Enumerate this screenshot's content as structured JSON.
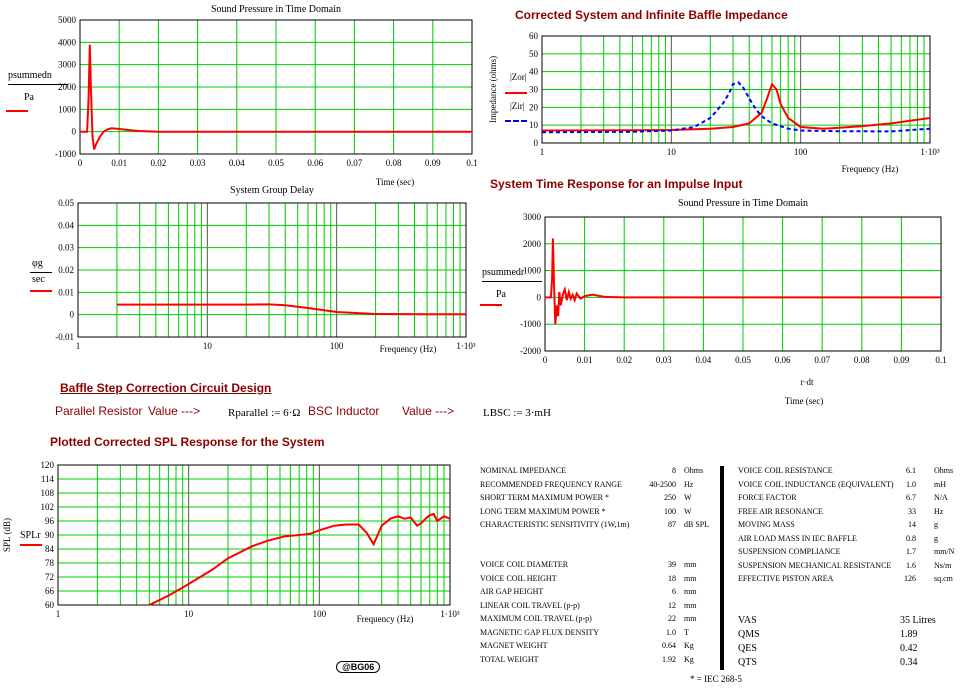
{
  "colors": {
    "grid": "#00cc00",
    "frame": "#000000",
    "decade": "#555555",
    "series1": "#ff0000",
    "series2": "#0000ff",
    "heading": "#8b0000"
  },
  "headings": {
    "impedance": "Corrected System and Infinite Baffle Impedance",
    "impulse": "System Time Response for an Impulse Input",
    "baffle": "Baffle Step Correction Circuit Design",
    "spl": "Plotted Corrected SPL Response for the System"
  },
  "circuit": {
    "parallel_label": "Parallel Resistor",
    "value_arrow_1": "Value --->",
    "r_expr": "Rparallel := 6·Ω",
    "inductor_label": "BSC Inductor",
    "value_arrow_2": "Value --->",
    "l_expr": "LBSC := 3·mH"
  },
  "legend_labels": {
    "p_summed_n": "psummedn",
    "pa": "Pa",
    "z_o": "|Zor|",
    "z_i": "|Zir|",
    "phi": "φg",
    "sec": "sec",
    "p_summed_r": "psummedr",
    "pa2": "Pa",
    "spl": "SPLr"
  },
  "chart_data": [
    {
      "type": "line",
      "title": "Sound Pressure in Time Domain",
      "xlabel": "Time (sec)",
      "ylabel": "",
      "xlim": [
        0,
        0.1
      ],
      "ylim": [
        -1000,
        5000
      ],
      "xticks": [
        "0",
        "0.01",
        "0.02",
        "0.03",
        "0.04",
        "0.05",
        "0.06",
        "0.07",
        "0.08",
        "0.09",
        "0.1"
      ],
      "yticks": [
        "-1000",
        "0",
        "1000",
        "2000",
        "3000",
        "4000",
        "5000"
      ],
      "grid": true,
      "series": [
        {
          "name": "psummedn",
          "x": [
            0,
            0.0018,
            0.0022,
            0.0025,
            0.0028,
            0.0032,
            0.0036,
            0.004,
            0.005,
            0.006,
            0.007,
            0.008,
            0.01,
            0.012,
            0.015,
            0.02,
            0.03,
            0.05,
            0.1
          ],
          "y": [
            0,
            0,
            1500,
            3900,
            1800,
            -200,
            -800,
            -600,
            -250,
            0,
            100,
            150,
            120,
            80,
            30,
            0,
            0,
            0,
            0
          ]
        }
      ]
    },
    {
      "type": "line",
      "title": "",
      "xlabel": "Frequency (Hz)",
      "ylabel": "Impedance (ohms)",
      "xscale": "log",
      "xlim": [
        1,
        1000
      ],
      "ylim": [
        0,
        60
      ],
      "xticks": [
        "1",
        "10",
        "100",
        "1·10^3"
      ],
      "yticks": [
        "0",
        "10",
        "20",
        "30",
        "40",
        "50",
        "60"
      ],
      "grid": true,
      "series": [
        {
          "name": "|Zor|",
          "x": [
            1,
            5,
            10,
            20,
            30,
            40,
            50,
            55,
            60,
            65,
            70,
            80,
            100,
            150,
            200,
            300,
            500,
            1000
          ],
          "y": [
            7,
            7.1,
            7.3,
            8,
            9,
            11,
            17,
            25,
            33,
            30,
            22,
            14,
            9,
            8,
            8.6,
            9.5,
            11,
            14
          ]
        },
        {
          "name": "|Zir|",
          "x": [
            1,
            5,
            10,
            15,
            20,
            25,
            28,
            30,
            33,
            36,
            40,
            45,
            50,
            60,
            80,
            100,
            200,
            500,
            1000
          ],
          "y": [
            6,
            6.3,
            7,
            9,
            14,
            22,
            28,
            33,
            34,
            31,
            25,
            19,
            15,
            11,
            8,
            7,
            6.6,
            6.5,
            8
          ]
        }
      ]
    },
    {
      "type": "line",
      "title": "System Group Delay",
      "xlabel": "Frequency (Hz)",
      "ylabel": "",
      "xscale": "log",
      "xlim": [
        1,
        1000
      ],
      "ylim": [
        -0.01,
        0.05
      ],
      "xticks": [
        "1",
        "10",
        "100",
        "1·10^3"
      ],
      "yticks": [
        "-0.01",
        "0",
        "0.01",
        "0.02",
        "0.03",
        "0.04",
        "0.05"
      ],
      "grid": true,
      "series": [
        {
          "name": "φg",
          "x": [
            2,
            5,
            10,
            20,
            30,
            40,
            60,
            100,
            200,
            500,
            1000
          ],
          "y": [
            0.0045,
            0.0045,
            0.0045,
            0.0045,
            0.0046,
            0.0042,
            0.003,
            0.0012,
            0.0003,
            0.0002,
            0.0002
          ]
        }
      ]
    },
    {
      "type": "line",
      "title": "Sound Pressure in Time Domain",
      "xlabel": "Time (sec)",
      "ylabel": "",
      "xlim": [
        0,
        0.1
      ],
      "ylim": [
        -2000,
        3000
      ],
      "xticks": [
        "0",
        "0.01",
        "0.02",
        "0.03",
        "0.04",
        "0.05",
        "0.06",
        "0.07",
        "0.08",
        "0.09",
        "0.1"
      ],
      "yticks": [
        "-2000",
        "-1000",
        "0",
        "1000",
        "2000",
        "3000"
      ],
      "grid": true,
      "annotation": "r·dt",
      "series": [
        {
          "name": "psummedr",
          "x": [
            0,
            0.0015,
            0.0018,
            0.002,
            0.0023,
            0.0026,
            0.003,
            0.0033,
            0.0036,
            0.004,
            0.0045,
            0.005,
            0.0055,
            0.006,
            0.0065,
            0.007,
            0.0075,
            0.008,
            0.009,
            0.01,
            0.012,
            0.015,
            0.02,
            0.05,
            0.1
          ],
          "y": [
            0,
            0,
            700,
            2200,
            400,
            -1000,
            -300,
            -700,
            200,
            -300,
            100,
            300,
            -100,
            200,
            -50,
            100,
            -100,
            150,
            -50,
            50,
            100,
            20,
            0,
            0,
            0
          ]
        }
      ]
    },
    {
      "type": "line",
      "title": "",
      "xlabel": "Frequency (Hz)",
      "ylabel": "SPL (dB)",
      "xscale": "log",
      "xlim": [
        1,
        1000
      ],
      "ylim": [
        60,
        120
      ],
      "xticks": [
        "1",
        "10",
        "100",
        "1·10^3"
      ],
      "yticks": [
        "60",
        "66",
        "72",
        "78",
        "84",
        "90",
        "96",
        "102",
        "108",
        "114",
        "120"
      ],
      "grid": true,
      "series": [
        {
          "name": "SPLr",
          "x": [
            5,
            7,
            10,
            15,
            20,
            30,
            40,
            55,
            70,
            85,
            100,
            130,
            160,
            200,
            230,
            260,
            300,
            350,
            400,
            450,
            500,
            560,
            600,
            650,
            700,
            750,
            800,
            900,
            1000
          ],
          "y": [
            60,
            64,
            69,
            75,
            80,
            85,
            87.5,
            89.5,
            90,
            90.5,
            92,
            94,
            94.5,
            94.5,
            91,
            86,
            94,
            97,
            98,
            97,
            97.5,
            94,
            95,
            97,
            98.5,
            99,
            96,
            98,
            97
          ]
        }
      ]
    }
  ],
  "specs_left_a": [
    {
      "label": "NOMINAL IMPEDANCE",
      "value": "8",
      "unit": "Ohms"
    },
    {
      "label": "RECOMMENDED FREQUENCY RANGE",
      "value": "40-2500",
      "unit": "Hz"
    },
    {
      "label": "SHORT TERM MAXIMUM POWER *",
      "value": "250",
      "unit": "W"
    },
    {
      "label": "LONG TERM MAXIMUM POWER *",
      "value": "100",
      "unit": "W"
    },
    {
      "label": "CHARACTERISTIC SENSITIVITY (1W,1m)",
      "value": "87",
      "unit": "dB SPL"
    }
  ],
  "specs_left_b": [
    {
      "label": "VOICE COIL DIAMETER",
      "value": "39",
      "unit": "mm"
    },
    {
      "label": "VOICE COIL HEIGHT",
      "value": "18",
      "unit": "mm"
    },
    {
      "label": "AIR GAP HEIGHT",
      "value": "6",
      "unit": "mm"
    },
    {
      "label": "LINEAR COIL TRAVEL (p-p)",
      "value": "12",
      "unit": "mm"
    },
    {
      "label": "MAXIMUM COIL TRAVEL (p-p)",
      "value": "22",
      "unit": "mm"
    },
    {
      "label": "MAGNETIC GAP FLUX DENSITY",
      "value": "1.0",
      "unit": "T"
    },
    {
      "label": "MAGNET WEIGHT",
      "value": "0.64",
      "unit": "Kg"
    },
    {
      "label": "TOTAL WEIGHT",
      "value": "1.92",
      "unit": "Kg"
    }
  ],
  "specs_right": [
    {
      "label": "VOICE COIL RESISTANCE",
      "value": "6.1",
      "unit": "Ohms"
    },
    {
      "label": "VOICE COIL INDUCTANCE (EQUIVALENT)",
      "value": "1.0",
      "unit": "mH"
    },
    {
      "label": "FORCE FACTOR",
      "value": "6.7",
      "unit": "N/A"
    },
    {
      "label": "FREE AIR RESONANCE",
      "value": "33",
      "unit": "Hz"
    },
    {
      "label": "MOVING MASS",
      "value": "14",
      "unit": "g"
    },
    {
      "label": "AIR LOAD MASS IN IEC BAFFLE",
      "value": "0.8",
      "unit": "g"
    },
    {
      "label": "SUSPENSION COMPLIANCE",
      "value": "1.7",
      "unit": "mm/N"
    },
    {
      "label": "SUSPENSION MECHANICAL RESISTANCE",
      "value": "1.6",
      "unit": "Ns/m"
    },
    {
      "label": "EFFECTIVE PISTON AREA",
      "value": "126",
      "unit": "sq.cm"
    }
  ],
  "specs_ts": [
    {
      "label": "VAS",
      "value": "35 Litres"
    },
    {
      "label": "QMS",
      "value": "1.89"
    },
    {
      "label": "QES",
      "value": "0.42"
    },
    {
      "label": "QTS",
      "value": "0.34"
    }
  ],
  "footnote": "* = IEC 268-5",
  "badge": "@BG06"
}
